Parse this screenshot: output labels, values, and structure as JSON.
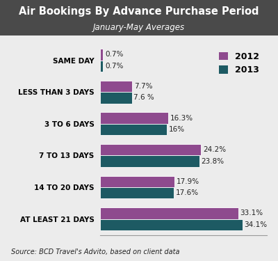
{
  "chart_data": {
    "type": "bar",
    "orientation": "horizontal",
    "title": "Air Bookings By Advance Purchase Period",
    "subtitle": "January-May Averages",
    "source": "Source: BCD Travel's Advito, based on client data",
    "categories": [
      "SAME DAY",
      "LESS THAN 3 DAYS",
      "3 TO 6 DAYS",
      "7 TO 13 DAYS",
      "14 TO 20 DAYS",
      "AT LEAST 21 DAYS"
    ],
    "series": [
      {
        "name": "2012",
        "color": "#8e4a8e",
        "values": [
          0.7,
          7.7,
          16.3,
          24.2,
          17.9,
          33.1
        ],
        "value_labels": [
          "0.7%",
          "7.7%",
          "16.3%",
          "24.2%",
          "17.9%",
          "33.1%"
        ]
      },
      {
        "name": "2013",
        "color": "#1d5a63",
        "values": [
          0.7,
          7.6,
          16,
          23.8,
          17.6,
          34.1
        ],
        "value_labels": [
          "0.7%",
          "7.6 %",
          "16%",
          "23.8%",
          "17.6%",
          "34.1%"
        ]
      }
    ],
    "xlim": [
      0,
      40
    ],
    "grid": false,
    "legend": "upper right",
    "data_labels": true,
    "tick_labels": "y"
  }
}
